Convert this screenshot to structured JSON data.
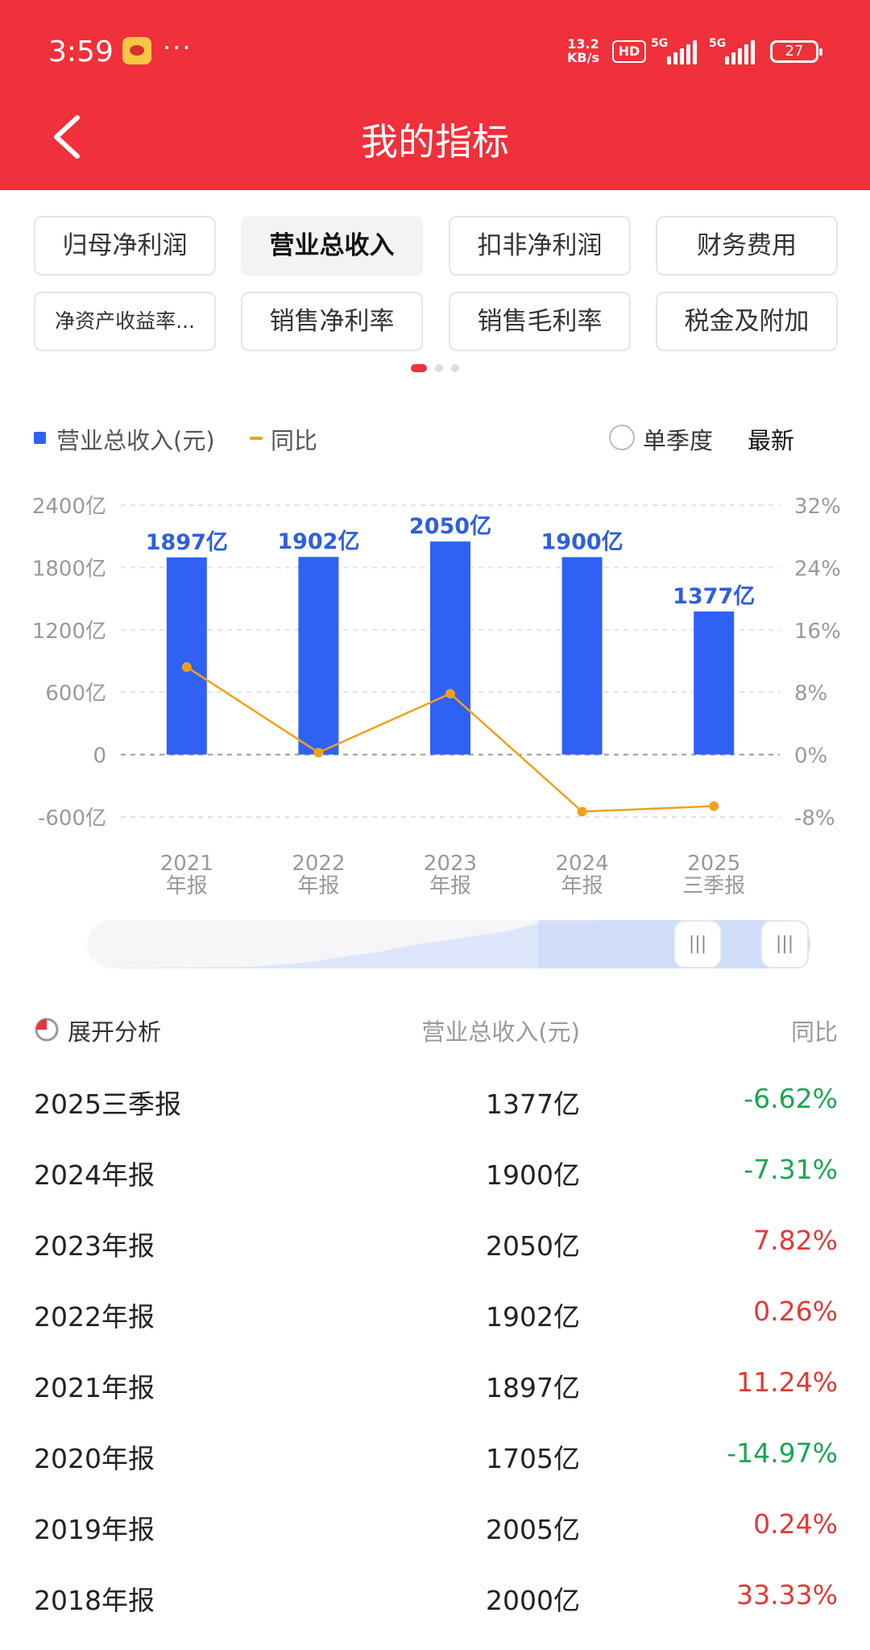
{
  "status_bar": {
    "time": "3:59",
    "net_speed_value": "13.2",
    "net_speed_unit": "KB/s",
    "hd_label": "HD",
    "signal1_label": "5G",
    "signal2_label": "5G",
    "battery": "27"
  },
  "header": {
    "title": "我的指标"
  },
  "metric_tabs": [
    {
      "label": "归母净利润",
      "active": false
    },
    {
      "label": "营业总收入",
      "active": true
    },
    {
      "label": "扣非净利润",
      "active": false
    },
    {
      "label": "财务费用",
      "active": false
    },
    {
      "label": "净资产收益率...",
      "active": false
    },
    {
      "label": "销售净利率",
      "active": false
    },
    {
      "label": "销售毛利率",
      "active": false
    },
    {
      "label": "税金及附加",
      "active": false
    }
  ],
  "legend": {
    "bar_label": "营业总收入(元)",
    "line_label": "同比",
    "single_quarter": "单季度",
    "latest": "最新"
  },
  "chart_data": {
    "type": "bar",
    "categories": [
      [
        "2021",
        "年报"
      ],
      [
        "2022",
        "年报"
      ],
      [
        "2023",
        "年报"
      ],
      [
        "2024",
        "年报"
      ],
      [
        "2025",
        "三季报"
      ]
    ],
    "series": [
      {
        "name": "营业总收入(元)",
        "values": [
          1897,
          1902,
          2050,
          1900,
          1377
        ],
        "labels": [
          "1897亿",
          "1902亿",
          "2050亿",
          "1900亿",
          "1377亿"
        ],
        "axis": "left",
        "type": "bar",
        "color": "#2f61f5"
      },
      {
        "name": "同比",
        "values": [
          11.24,
          0.26,
          7.82,
          -7.31,
          -6.62
        ],
        "axis": "right",
        "type": "line",
        "color": "#f0a11c"
      }
    ],
    "y_left": {
      "ticks": [
        "2400亿",
        "1800亿",
        "1200亿",
        "600亿",
        "0",
        "-600亿"
      ],
      "range": [
        -600,
        2400
      ]
    },
    "y_right": {
      "ticks": [
        "32%",
        "24%",
        "16%",
        "8%",
        "0%",
        "-8%"
      ],
      "range": [
        -8,
        32
      ]
    }
  },
  "table": {
    "header": {
      "label": "展开分析",
      "revenue": "营业总收入(元)",
      "yoy": "同比"
    },
    "rows": [
      {
        "period": "2025三季报",
        "revenue": "1377亿",
        "yoy": "-6.62%",
        "trend": "down"
      },
      {
        "period": "2024年报",
        "revenue": "1900亿",
        "yoy": "-7.31%",
        "trend": "down"
      },
      {
        "period": "2023年报",
        "revenue": "2050亿",
        "yoy": "7.82%",
        "trend": "up"
      },
      {
        "period": "2022年报",
        "revenue": "1902亿",
        "yoy": "0.26%",
        "trend": "up"
      },
      {
        "period": "2021年报",
        "revenue": "1897亿",
        "yoy": "11.24%",
        "trend": "up"
      },
      {
        "period": "2020年报",
        "revenue": "1705亿",
        "yoy": "-14.97%",
        "trend": "down"
      },
      {
        "period": "2019年报",
        "revenue": "2005亿",
        "yoy": "0.24%",
        "trend": "up"
      },
      {
        "period": "2018年报",
        "revenue": "2000亿",
        "yoy": "33.33%",
        "trend": "up"
      }
    ]
  }
}
